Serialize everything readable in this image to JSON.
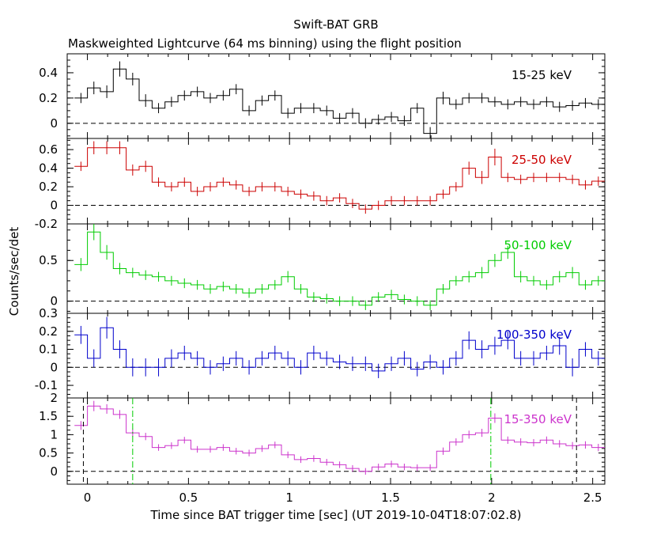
{
  "chart_data": {
    "type": "line",
    "title": "Swift-BAT GRB",
    "subtitle": "Maskweighted Lightcurve (64 ms binning) using the flight position",
    "xlabel": "Time since BAT trigger time [sec] (UT 2019-10-04T18:07:02.8)",
    "ylabel": "Counts/sec/det",
    "xlim": [
      -0.1,
      2.56
    ],
    "x_ticks": [
      "0",
      "0.5",
      "1",
      "1.5",
      "2",
      "2.5"
    ],
    "x_tick_values": [
      0,
      0.5,
      1,
      1.5,
      2,
      2.5
    ],
    "bins": {
      "start": -0.064,
      "width": 0.064,
      "count": 41
    },
    "x_bin_starts": [
      -0.064,
      0.0,
      0.064,
      0.128,
      0.192,
      0.256,
      0.32,
      0.384,
      0.448,
      0.512,
      0.576,
      0.64,
      0.704,
      0.768,
      0.832,
      0.896,
      0.96,
      1.024,
      1.088,
      1.152,
      1.216,
      1.28,
      1.344,
      1.408,
      1.472,
      1.536,
      1.6,
      1.664,
      1.728,
      1.792,
      1.856,
      1.92,
      1.984,
      2.048,
      2.112,
      2.176,
      2.24,
      2.304,
      2.368,
      2.432,
      2.496
    ],
    "panels": [
      {
        "label": "15-25 keV",
        "color": "#000000",
        "ylim": [
          -0.12,
          0.55
        ],
        "y_ticks": [
          "0",
          "0.2",
          "0.4"
        ],
        "y_tick_values": [
          0,
          0.2,
          0.4
        ],
        "values": [
          0.2,
          0.28,
          0.25,
          0.43,
          0.35,
          0.18,
          0.12,
          0.17,
          0.22,
          0.25,
          0.2,
          0.22,
          0.27,
          0.1,
          0.18,
          0.22,
          0.08,
          0.12,
          0.12,
          0.1,
          0.04,
          0.08,
          0.0,
          0.03,
          0.05,
          0.02,
          0.12,
          -0.08,
          0.2,
          0.15,
          0.2,
          0.2,
          0.17,
          0.15,
          0.17,
          0.15,
          0.17,
          0.13,
          0.14,
          0.16,
          0.15
        ],
        "errors": [
          0.04,
          0.05,
          0.05,
          0.06,
          0.05,
          0.05,
          0.04,
          0.04,
          0.04,
          0.04,
          0.04,
          0.04,
          0.04,
          0.04,
          0.04,
          0.04,
          0.04,
          0.04,
          0.04,
          0.04,
          0.04,
          0.04,
          0.04,
          0.04,
          0.04,
          0.04,
          0.04,
          0.05,
          0.05,
          0.04,
          0.04,
          0.04,
          0.04,
          0.04,
          0.04,
          0.04,
          0.04,
          0.04,
          0.04,
          0.04,
          0.04
        ]
      },
      {
        "label": "25-50 keV",
        "color": "#cc0000",
        "ylim": [
          -0.2,
          0.72
        ],
        "y_ticks": [
          "-0.2",
          "0",
          "0.2",
          "0.4",
          "0.6"
        ],
        "y_tick_values": [
          -0.2,
          0,
          0.2,
          0.4,
          0.6
        ],
        "values": [
          0.42,
          0.62,
          0.62,
          0.62,
          0.38,
          0.42,
          0.25,
          0.2,
          0.25,
          0.15,
          0.2,
          0.25,
          0.22,
          0.15,
          0.2,
          0.2,
          0.15,
          0.12,
          0.1,
          0.05,
          0.08,
          0.02,
          -0.04,
          0.0,
          0.05,
          0.05,
          0.05,
          0.05,
          0.12,
          0.2,
          0.4,
          0.3,
          0.52,
          0.3,
          0.28,
          0.3,
          0.3,
          0.3,
          0.28,
          0.22,
          0.26
        ],
        "errors": [
          0.05,
          0.07,
          0.07,
          0.07,
          0.06,
          0.06,
          0.05,
          0.05,
          0.05,
          0.05,
          0.05,
          0.05,
          0.05,
          0.05,
          0.05,
          0.05,
          0.05,
          0.05,
          0.05,
          0.05,
          0.05,
          0.05,
          0.05,
          0.05,
          0.05,
          0.05,
          0.05,
          0.05,
          0.05,
          0.05,
          0.07,
          0.07,
          0.09,
          0.05,
          0.05,
          0.05,
          0.05,
          0.05,
          0.05,
          0.05,
          0.05
        ]
      },
      {
        "label": "50-100 keV",
        "color": "#00cc00",
        "ylim": [
          -0.15,
          0.95
        ],
        "y_ticks": [
          "0",
          "0.5"
        ],
        "y_tick_values": [
          0,
          0.5
        ],
        "values": [
          0.45,
          0.85,
          0.6,
          0.4,
          0.35,
          0.32,
          0.3,
          0.25,
          0.22,
          0.2,
          0.15,
          0.18,
          0.15,
          0.1,
          0.15,
          0.2,
          0.3,
          0.15,
          0.05,
          0.03,
          0.0,
          0.0,
          -0.05,
          0.05,
          0.08,
          0.02,
          0.0,
          -0.05,
          0.15,
          0.25,
          0.3,
          0.35,
          0.5,
          0.6,
          0.3,
          0.25,
          0.2,
          0.3,
          0.35,
          0.2,
          0.25
        ],
        "errors": [
          0.08,
          0.1,
          0.09,
          0.07,
          0.06,
          0.06,
          0.06,
          0.06,
          0.06,
          0.06,
          0.06,
          0.06,
          0.06,
          0.06,
          0.06,
          0.06,
          0.07,
          0.06,
          0.06,
          0.06,
          0.06,
          0.06,
          0.06,
          0.06,
          0.06,
          0.06,
          0.06,
          0.06,
          0.06,
          0.06,
          0.07,
          0.07,
          0.08,
          0.08,
          0.07,
          0.06,
          0.06,
          0.07,
          0.07,
          0.06,
          0.06
        ]
      },
      {
        "label": "100-350 keV",
        "color": "#0000cc",
        "ylim": [
          -0.17,
          0.3
        ],
        "y_ticks": [
          "-0.1",
          "0",
          "0.1",
          "0.2",
          "0.3"
        ],
        "y_tick_values": [
          -0.1,
          0,
          0.1,
          0.2,
          0.3
        ],
        "values": [
          0.18,
          0.05,
          0.22,
          0.1,
          0.0,
          0.0,
          0.0,
          0.05,
          0.08,
          0.05,
          0.0,
          0.02,
          0.05,
          0.0,
          0.05,
          0.08,
          0.05,
          0.0,
          0.08,
          0.05,
          0.03,
          0.02,
          0.02,
          -0.02,
          0.02,
          0.05,
          -0.01,
          0.03,
          0.0,
          0.05,
          0.15,
          0.1,
          0.12,
          0.15,
          0.05,
          0.05,
          0.08,
          0.12,
          0.0,
          0.1,
          0.05
        ],
        "errors": [
          0.05,
          0.05,
          0.06,
          0.05,
          0.05,
          0.05,
          0.05,
          0.05,
          0.04,
          0.04,
          0.04,
          0.04,
          0.04,
          0.04,
          0.04,
          0.04,
          0.04,
          0.04,
          0.04,
          0.04,
          0.04,
          0.04,
          0.04,
          0.04,
          0.04,
          0.04,
          0.04,
          0.04,
          0.04,
          0.04,
          0.05,
          0.05,
          0.05,
          0.05,
          0.04,
          0.04,
          0.04,
          0.05,
          0.05,
          0.04,
          0.04
        ]
      },
      {
        "label": "15-350 keV",
        "color": "#cc33cc",
        "ylim": [
          -0.35,
          2.0
        ],
        "y_ticks": [
          "0",
          "0.5",
          "1",
          "1.5",
          "2"
        ],
        "y_tick_values": [
          0,
          0.5,
          1,
          1.5,
          2
        ],
        "values": [
          1.25,
          1.78,
          1.7,
          1.55,
          1.05,
          0.95,
          0.65,
          0.7,
          0.85,
          0.6,
          0.6,
          0.65,
          0.55,
          0.5,
          0.62,
          0.72,
          0.45,
          0.32,
          0.35,
          0.25,
          0.18,
          0.08,
          0.0,
          0.12,
          0.2,
          0.12,
          0.1,
          0.1,
          0.55,
          0.8,
          1.0,
          1.05,
          1.45,
          0.85,
          0.8,
          0.78,
          0.85,
          0.75,
          0.7,
          0.72,
          0.65
        ],
        "errors": [
          0.12,
          0.14,
          0.13,
          0.12,
          0.11,
          0.1,
          0.09,
          0.09,
          0.09,
          0.09,
          0.09,
          0.09,
          0.09,
          0.09,
          0.09,
          0.09,
          0.09,
          0.09,
          0.09,
          0.09,
          0.09,
          0.09,
          0.09,
          0.09,
          0.09,
          0.09,
          0.09,
          0.09,
          0.1,
          0.1,
          0.11,
          0.11,
          0.13,
          0.1,
          0.1,
          0.1,
          0.1,
          0.1,
          0.1,
          0.1,
          0.1
        ],
        "vlines": [
          {
            "x": -0.02,
            "style": "dashed",
            "color": "#000000"
          },
          {
            "x": 0.224,
            "style": "dashdot",
            "color": "#00cc00"
          },
          {
            "x": 1.996,
            "style": "dashdot",
            "color": "#00cc00"
          },
          {
            "x": 2.42,
            "style": "dashed",
            "color": "#000000"
          }
        ]
      }
    ],
    "zero_line": {
      "style": "dashed",
      "color": "#000000"
    },
    "legend": "per-panel label inside top-right"
  }
}
